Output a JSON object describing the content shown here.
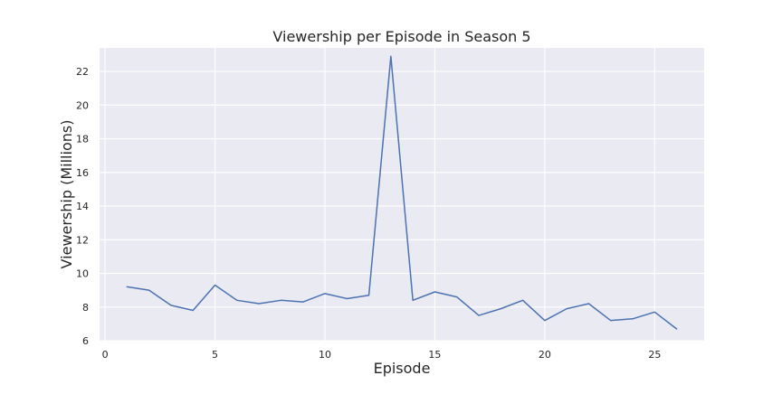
{
  "chart_data": {
    "type": "line",
    "title": "Viewership per Episode in Season 5",
    "xlabel": "Episode",
    "ylabel": "Viewership (Millions)",
    "xlim": [
      -0.25,
      27.25
    ],
    "ylim": [
      6,
      23.4
    ],
    "xticks": [
      0,
      5,
      10,
      15,
      20,
      25
    ],
    "yticks": [
      6,
      8,
      10,
      12,
      14,
      16,
      18,
      20,
      22
    ],
    "grid": true,
    "legend": "none",
    "series": [
      {
        "color": "#4C72B0",
        "x": [
          1,
          2,
          3,
          4,
          5,
          6,
          7,
          8,
          9,
          10,
          11,
          12,
          13,
          14,
          15,
          16,
          17,
          18,
          19,
          20,
          21,
          22,
          23,
          24,
          25,
          26
        ],
        "values": [
          9.2,
          9.0,
          8.1,
          7.8,
          9.3,
          8.4,
          8.2,
          8.4,
          8.3,
          8.8,
          8.5,
          8.7,
          22.9,
          8.4,
          8.9,
          8.6,
          7.5,
          7.9,
          8.4,
          7.2,
          7.9,
          8.2,
          7.2,
          7.3,
          7.7,
          6.7
        ]
      }
    ]
  },
  "style": {
    "background": "#ffffff",
    "plot_background": "#EAEAF2",
    "grid_color": "#ffffff",
    "text_color": "#262626"
  }
}
